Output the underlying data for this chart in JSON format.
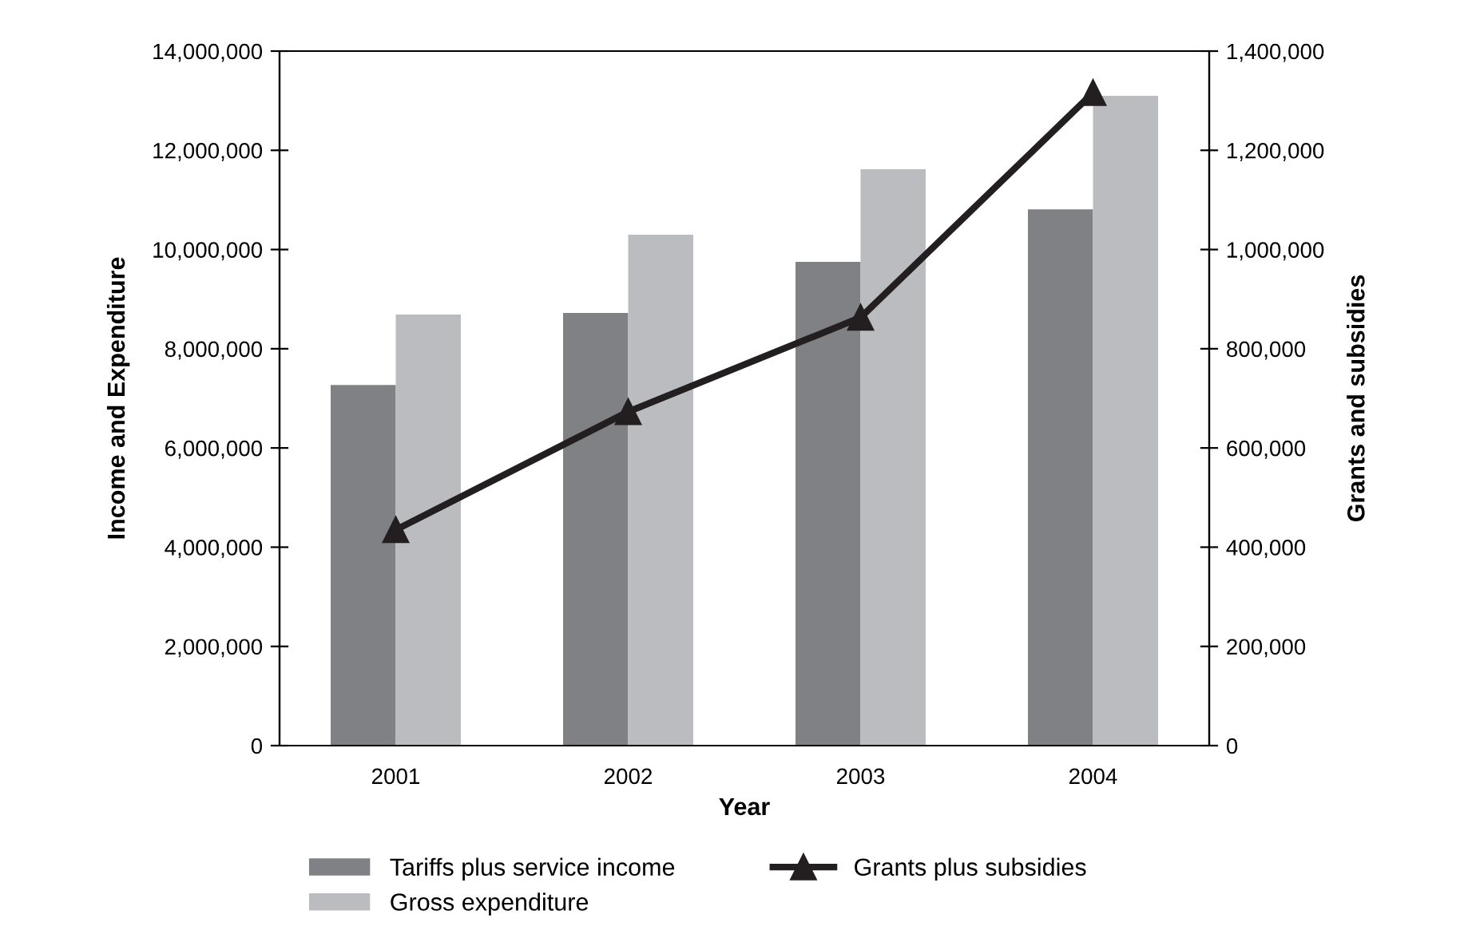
{
  "chart_data": {
    "type": "bar",
    "xlabel": "Year",
    "ylabel": "Income and Expenditure",
    "y2label": "Grants and subsidies",
    "categories": [
      "2001",
      "2002",
      "2003",
      "2004"
    ],
    "series": [
      {
        "name": "Tariffs plus service income",
        "color": "#808184",
        "values": [
          7270000,
          8720000,
          9750000,
          10810000
        ]
      },
      {
        "name": "Gross expenditure",
        "color": "#bbbcc0",
        "values": [
          8690000,
          10300000,
          11620000,
          13100000
        ]
      },
      {
        "name": "Grants plus subsidies",
        "type": "line",
        "axis": "y2",
        "color": "#231f20",
        "marker": "triangle",
        "values": [
          435000,
          673000,
          863000,
          1316000
        ]
      }
    ],
    "ylim": [
      0,
      14000000
    ],
    "yticks": [
      {
        "value": 0,
        "label": "0"
      },
      {
        "value": 2000000,
        "label": "2,000,000"
      },
      {
        "value": 4000000,
        "label": "4,000,000"
      },
      {
        "value": 6000000,
        "label": "6,000,000"
      },
      {
        "value": 8000000,
        "label": "8,000,000"
      },
      {
        "value": 10000000,
        "label": "10,000,000"
      },
      {
        "value": 12000000,
        "label": "12,000,000"
      },
      {
        "value": 14000000,
        "label": "14,000,000"
      }
    ],
    "y2lim": [
      0,
      1400000
    ],
    "y2ticks": [
      {
        "value": 0,
        "label": "0"
      },
      {
        "value": 200000,
        "label": "200,000"
      },
      {
        "value": 400000,
        "label": "400,000"
      },
      {
        "value": 600000,
        "label": "600,000"
      },
      {
        "value": 800000,
        "label": "800,000"
      },
      {
        "value": 1000000,
        "label": "1,000,000"
      },
      {
        "value": 1200000,
        "label": "1,200,000"
      },
      {
        "value": 1400000,
        "label": "1,400,000"
      }
    ],
    "grid": false,
    "legend": "bottom"
  }
}
